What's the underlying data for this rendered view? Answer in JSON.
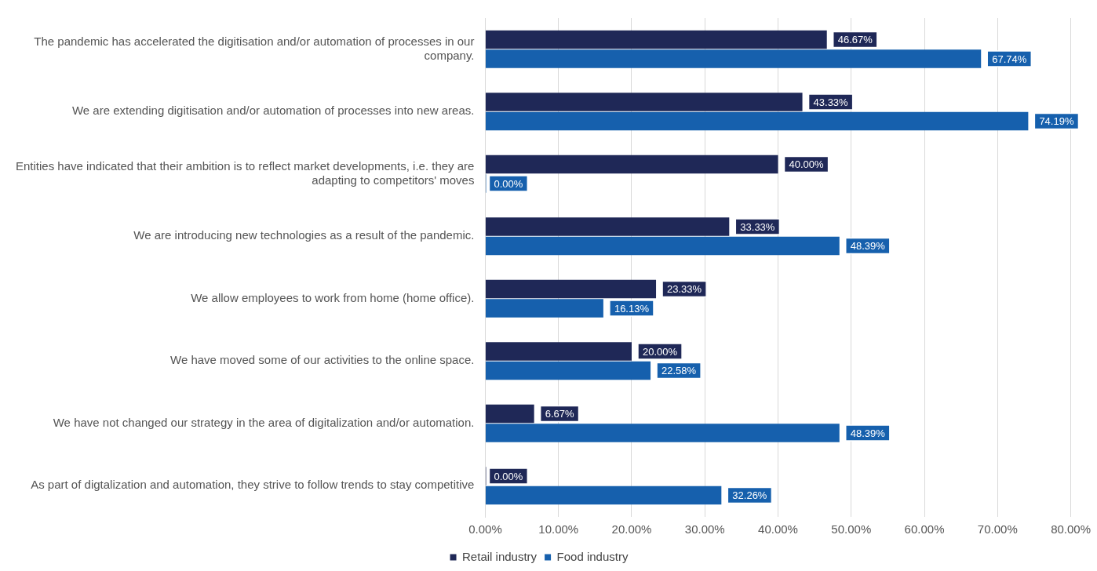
{
  "chart_data": {
    "type": "bar",
    "orientation": "horizontal",
    "categories": [
      "The pandemic has accelerated the digitisation and/or automation of processes in our company.",
      "We are extending digitisation and/or automation of processes into new areas.",
      "Entities have indicated that their ambition is to reflect market developments, i.e. they are adapting to competitors' moves",
      "We are introducing new technologies as a result of the pandemic.",
      "We allow employees to work from home (home office).",
      "We have moved some of our activities to the online space.",
      "We have not changed our strategy in the area of digitalization and/or automation.",
      "As part of digtalization and automation, they strive to follow trends to stay competitive"
    ],
    "series": [
      {
        "name": "Retail industry",
        "color": "#1f2857",
        "values": [
          46.67,
          43.33,
          40.0,
          33.33,
          23.33,
          20.0,
          6.67,
          0.0
        ],
        "value_labels": [
          "46.67%",
          "43.33%",
          "40.00%",
          "33.33%",
          "23.33%",
          "20.00%",
          "6.67%",
          "0.00%"
        ]
      },
      {
        "name": "Food industry",
        "color": "#1660ad",
        "values": [
          67.74,
          74.19,
          0.0,
          48.39,
          16.13,
          22.58,
          48.39,
          32.26
        ],
        "value_labels": [
          "67.74%",
          "74.19%",
          "0.00%",
          "48.39%",
          "16.13%",
          "22.58%",
          "48.39%",
          "32.26%"
        ]
      }
    ],
    "xlim": [
      0,
      80
    ],
    "xticks": [
      {
        "value": 0,
        "label": "0.00%"
      },
      {
        "value": 10,
        "label": "10.00%"
      },
      {
        "value": 20,
        "label": "20.00%"
      },
      {
        "value": 30,
        "label": "30.00%"
      },
      {
        "value": 40,
        "label": "40.00%"
      },
      {
        "value": 50,
        "label": "50.00%"
      },
      {
        "value": 60,
        "label": "60.00%"
      },
      {
        "value": 70,
        "label": "70.00%"
      },
      {
        "value": 80,
        "label": "80.00%"
      }
    ],
    "grid": "x",
    "legend": "bottom"
  }
}
